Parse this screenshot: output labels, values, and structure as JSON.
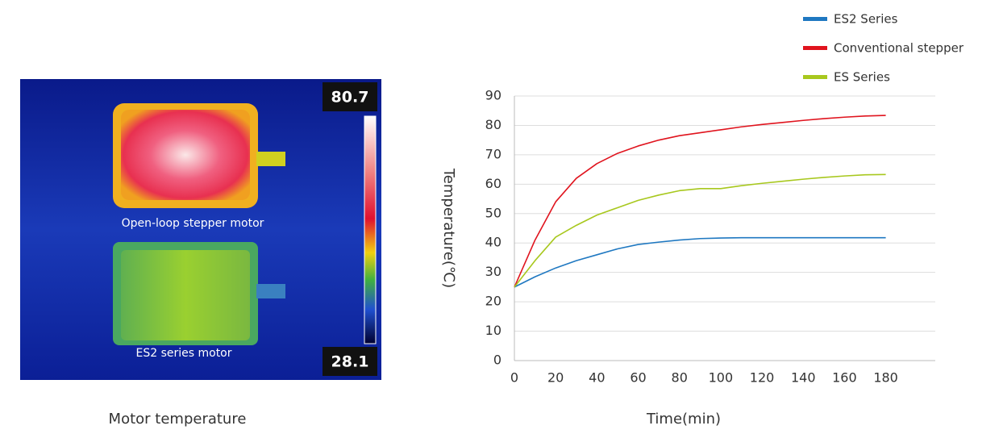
{
  "image": {
    "scale_max": 80.7,
    "scale_min": 28.1,
    "top_label": "Open-loop stepper motor",
    "bottom_label": "ES2 series motor",
    "caption": "Motor temperature"
  },
  "chart_data": {
    "type": "line",
    "y_label": "Temperature(℃)",
    "x_label": "Time(min)",
    "x": [
      0,
      10,
      20,
      30,
      40,
      50,
      60,
      70,
      80,
      90,
      100,
      110,
      120,
      130,
      140,
      150,
      160,
      170,
      180
    ],
    "series": [
      {
        "name": "ES2 Series",
        "color": "#1f78c1",
        "values": [
          25,
          28.5,
          31.5,
          34,
          36,
          38,
          39.5,
          40.3,
          41,
          41.5,
          41.7,
          41.8,
          41.8,
          41.8,
          41.8,
          41.8,
          41.8,
          41.8,
          41.8
        ]
      },
      {
        "name": "Conventional stepper",
        "color": "#e0141e",
        "values": [
          25,
          41,
          54,
          62,
          67,
          70.5,
          73,
          75,
          76.5,
          77.5,
          78.5,
          79.5,
          80.3,
          81,
          81.7,
          82.3,
          82.8,
          83.2,
          83.4
        ]
      },
      {
        "name": "ES Series",
        "color": "#a8c81e",
        "values": [
          25,
          34,
          42,
          46,
          49.5,
          52,
          54.5,
          56.3,
          57.8,
          58.5,
          58.5,
          59.5,
          60.3,
          61,
          61.7,
          62.3,
          62.8,
          63.2,
          63.3
        ]
      }
    ],
    "xlim": [
      0,
      204
    ],
    "xticks": [
      0,
      20,
      40,
      60,
      80,
      100,
      120,
      140,
      160,
      180
    ],
    "ylim": [
      0,
      90
    ],
    "yticks": [
      0,
      10,
      20,
      30,
      40,
      50,
      60,
      70,
      80,
      90
    ],
    "grid": true,
    "legend": "top-right"
  }
}
